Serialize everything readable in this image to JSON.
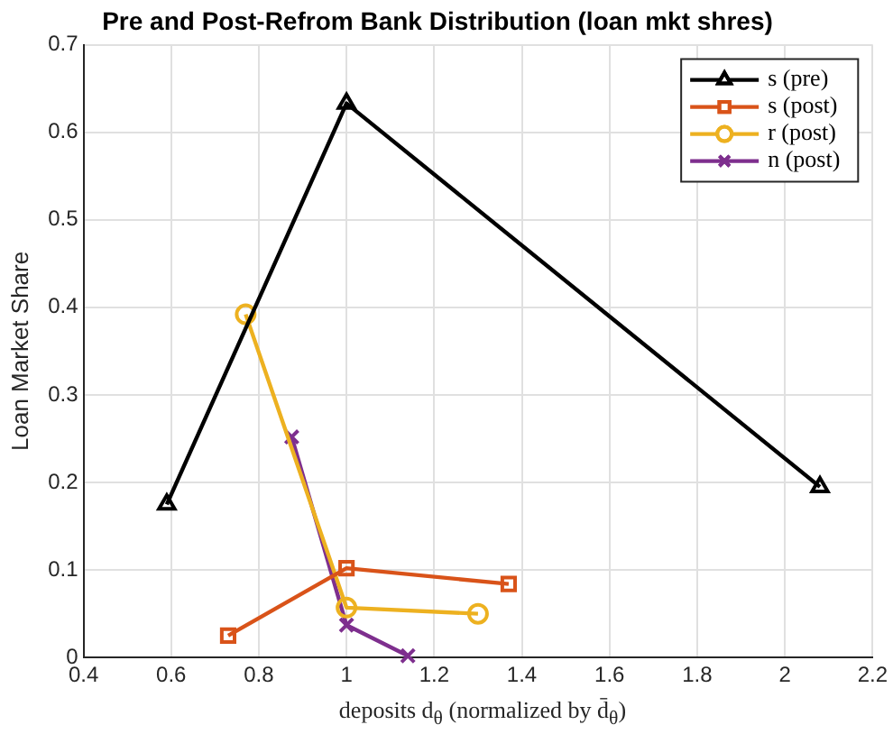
{
  "chart_data": {
    "type": "line",
    "title": "Pre and Post-Refrom Bank Distribution (loan mkt shres)",
    "xlabel": "deposits d$_{θ}$ (normalized by d̄$_{θ}$)",
    "ylabel": "Loan Market Share",
    "series": [
      {
        "name": "s (pre)",
        "color": "#000000",
        "marker": "triangle",
        "x": [
          0.59,
          1.0,
          2.08
        ],
        "values": [
          0.175,
          0.633,
          0.195
        ]
      },
      {
        "name": "s (post)",
        "color": "#d95319",
        "marker": "square",
        "x": [
          0.73,
          1.0,
          1.37
        ],
        "values": [
          0.025,
          0.102,
          0.084
        ]
      },
      {
        "name": "r (post)",
        "color": "#edb120",
        "marker": "circle",
        "x": [
          0.77,
          1.0,
          1.3
        ],
        "values": [
          0.392,
          0.057,
          0.05
        ]
      },
      {
        "name": "n (post)",
        "color": "#7e2f8e",
        "marker": "cross",
        "x": [
          0.875,
          1.0,
          1.14
        ],
        "values": [
          0.252,
          0.037,
          0.002
        ]
      }
    ],
    "xlim": [
      0.4,
      2.2
    ],
    "xticks": [
      0.4,
      0.6,
      0.8,
      1,
      1.2,
      1.4,
      1.6,
      1.8,
      2,
      2.2
    ],
    "ylim": [
      0,
      0.7
    ],
    "yticks": [
      0,
      0.1,
      0.2,
      0.3,
      0.4,
      0.5,
      0.6,
      0.7
    ],
    "grid": true,
    "legend": "top right",
    "line_style": "solid"
  }
}
